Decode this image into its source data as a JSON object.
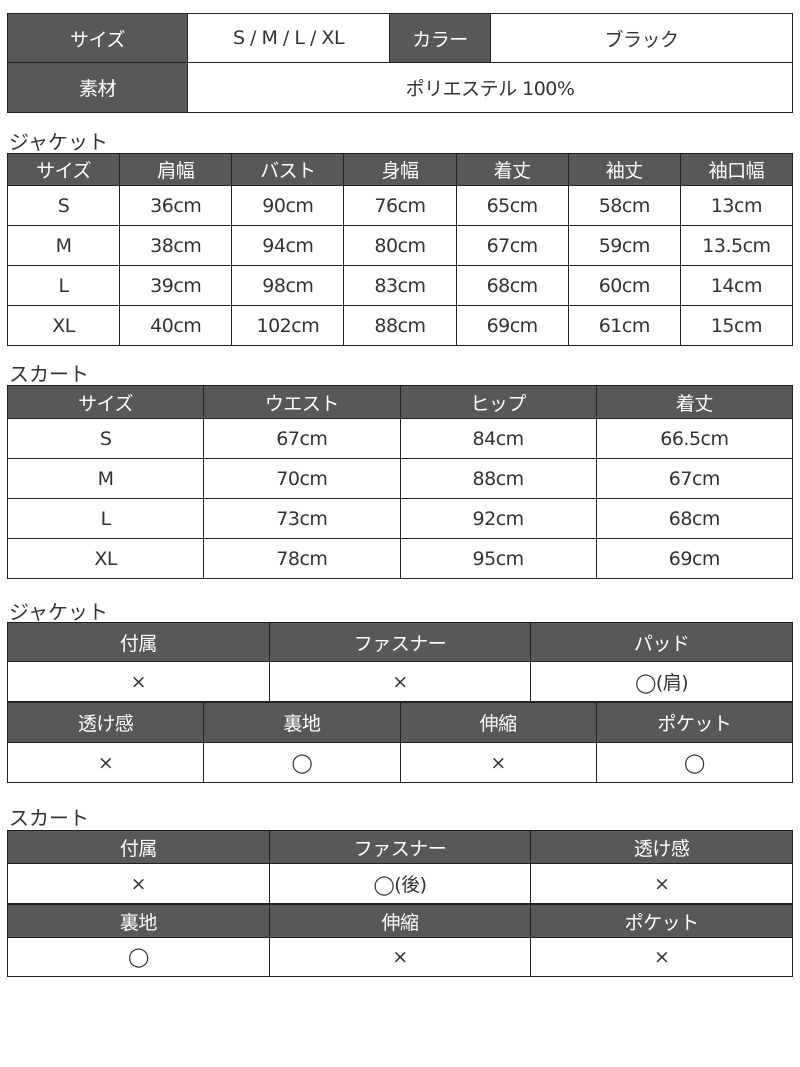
{
  "summary": {
    "size_label": "サイズ",
    "size_value": "S / M / L / XL",
    "color_label": "カラー",
    "color_value": "ブラック",
    "material_label": "素材",
    "material_value": "ポリエステル 100%"
  },
  "jacket_size": {
    "title": "ジャケット",
    "headers": [
      "サイズ",
      "肩幅",
      "バスト",
      "身幅",
      "着丈",
      "袖丈",
      "袖口幅"
    ],
    "rows": [
      [
        "S",
        "36cm",
        "90cm",
        "76cm",
        "65cm",
        "58cm",
        "13cm"
      ],
      [
        "M",
        "38cm",
        "94cm",
        "80cm",
        "67cm",
        "59cm",
        "13.5cm"
      ],
      [
        "L",
        "39cm",
        "98cm",
        "83cm",
        "68cm",
        "60cm",
        "14cm"
      ],
      [
        "XL",
        "40cm",
        "102cm",
        "88cm",
        "69cm",
        "61cm",
        "15cm"
      ]
    ]
  },
  "skirt_size": {
    "title": "スカート",
    "headers": [
      "サイズ",
      "ウエスト",
      "ヒップ",
      "着丈"
    ],
    "rows": [
      [
        "S",
        "67cm",
        "84cm",
        "66.5cm"
      ],
      [
        "M",
        "70cm",
        "88cm",
        "67cm"
      ],
      [
        "L",
        "73cm",
        "92cm",
        "68cm"
      ],
      [
        "XL",
        "78cm",
        "95cm",
        "69cm"
      ]
    ]
  },
  "jacket_features": {
    "title": "ジャケット",
    "group1": {
      "headers": [
        "付属",
        "ファスナー",
        "パッド"
      ],
      "values": [
        "×",
        "×",
        "◯(肩)"
      ]
    },
    "group2": {
      "headers": [
        "透け感",
        "裏地",
        "伸縮",
        "ポケット"
      ],
      "values": [
        "×",
        "◯",
        "×",
        "◯"
      ]
    }
  },
  "skirt_features": {
    "title": "スカート",
    "group1": {
      "headers": [
        "付属",
        "ファスナー",
        "透け感"
      ],
      "values": [
        "×",
        "◯(後)",
        "×"
      ]
    },
    "group2": {
      "headers": [
        "裏地",
        "伸縮",
        "ポケット"
      ],
      "values": [
        "◯",
        "×",
        "×"
      ]
    }
  },
  "colors": {
    "header_bg": "#585858",
    "border": "#222222"
  }
}
